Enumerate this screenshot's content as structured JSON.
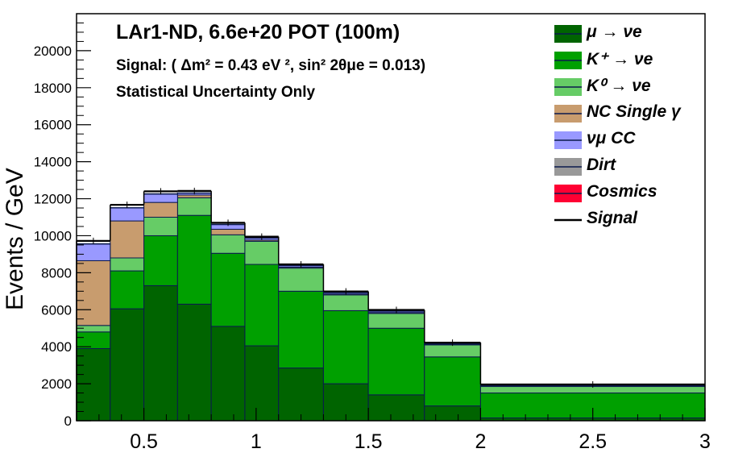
{
  "chart_data": {
    "type": "stacked_histogram",
    "ylabel": "Events / GeV",
    "xlim": [
      0.2,
      3.0
    ],
    "ylim": [
      0,
      22000
    ],
    "x_ticks": [
      "0.5",
      "1",
      "1.5",
      "2",
      "2.5",
      "3"
    ],
    "y_ticks": [
      "0",
      "2000",
      "4000",
      "6000",
      "8000",
      "10000",
      "12000",
      "14000",
      "16000",
      "18000",
      "20000"
    ],
    "bin_edges": [
      0.2,
      0.35,
      0.5,
      0.65,
      0.8,
      0.95,
      1.1,
      1.3,
      1.5,
      1.75,
      2.0,
      3.0
    ],
    "annotations": [
      "LAr1-ND, 6.6e+20 POT (100m)",
      "Signal: ( Δm² = 0.43 eV ², sin² 2θμe = 0.013)",
      "Statistical Uncertainty Only"
    ],
    "legend_position": "top-right",
    "series": [
      {
        "name": "μ → νe",
        "color": "#006400",
        "values": [
          3900,
          6050,
          7300,
          6300,
          5100,
          4050,
          2850,
          2000,
          1400,
          800,
          150
        ]
      },
      {
        "name": "K⁺ → νe",
        "color": "#00a000",
        "values": [
          900,
          2050,
          2700,
          4800,
          3950,
          4400,
          4150,
          3950,
          3600,
          2650,
          1350
        ]
      },
      {
        "name": "K⁰ → νe",
        "color": "#66cc66",
        "values": [
          350,
          700,
          1000,
          950,
          1000,
          1250,
          1250,
          850,
          800,
          650,
          350
        ]
      },
      {
        "name": "NC Single γ",
        "color": "#c89c6e",
        "values": [
          3500,
          2000,
          800,
          150,
          300,
          70,
          50,
          50,
          50,
          20,
          20
        ]
      },
      {
        "name": "νμ CC",
        "color": "#9999ff",
        "values": [
          900,
          700,
          450,
          100,
          250,
          100,
          80,
          70,
          70,
          40,
          30
        ]
      },
      {
        "name": "Dirt",
        "color": "#999999",
        "values": [
          20,
          20,
          20,
          20,
          20,
          20,
          20,
          20,
          20,
          20,
          20
        ]
      },
      {
        "name": "Cosmics",
        "color": "#ff0033",
        "values": [
          0,
          0,
          0,
          0,
          0,
          0,
          0,
          0,
          0,
          0,
          0
        ]
      },
      {
        "name": "Signal",
        "color": "#000000",
        "values": [
          150,
          150,
          130,
          100,
          80,
          60,
          50,
          50,
          50,
          40,
          40
        ]
      }
    ]
  }
}
